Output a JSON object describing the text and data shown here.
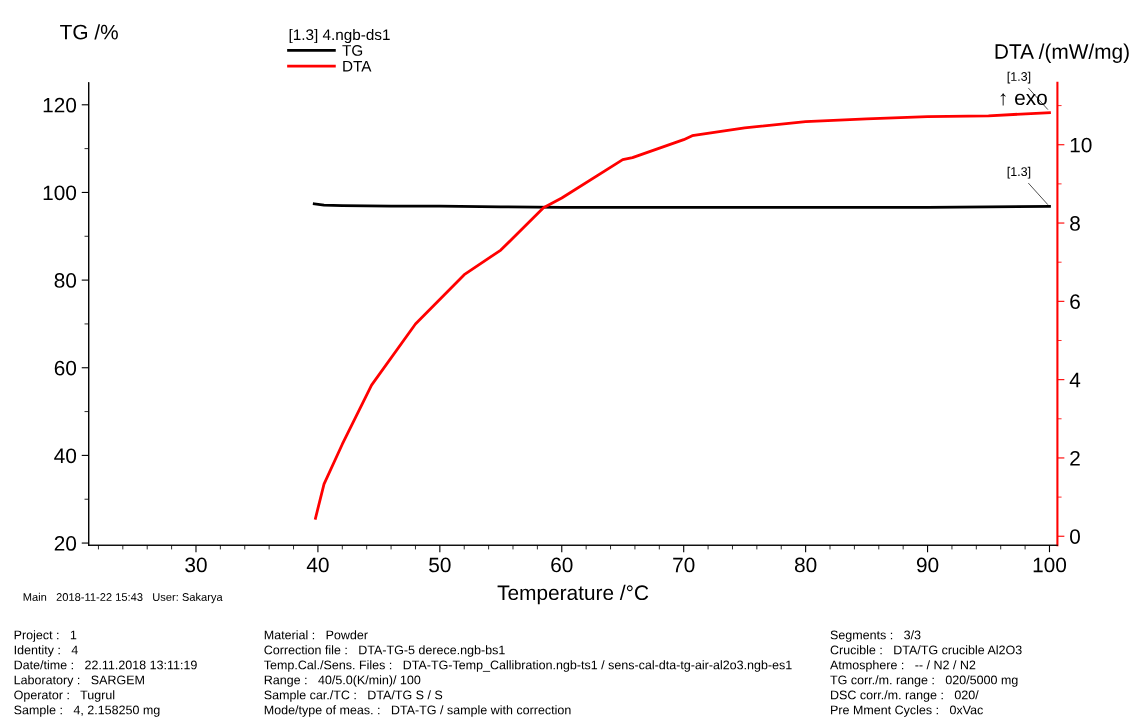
{
  "chart_data": {
    "type": "line",
    "xlabel": "Temperature /°C",
    "ylabel": "TG /%",
    "y2label": "DTA /(mW/mg)",
    "legend_title": "[1.3] 4.ngb-ds1",
    "legend": "top",
    "xlim": [
      21.2,
      100.65
    ],
    "ylim": [
      19.5,
      125
    ],
    "y2lim": [
      -0.23,
      11.58
    ],
    "xticks": [
      {
        "value": 22,
        "label": null
      },
      {
        "value": 24,
        "label": null
      },
      {
        "value": 26,
        "label": null
      },
      {
        "value": 28,
        "label": null
      },
      30,
      {
        "value": 32,
        "label": null
      },
      {
        "value": 34,
        "label": null
      },
      {
        "value": 36,
        "label": null
      },
      {
        "value": 38,
        "label": null
      },
      40,
      {
        "value": 42,
        "label": null
      },
      {
        "value": 44,
        "label": null
      },
      {
        "value": 46,
        "label": null
      },
      {
        "value": 48,
        "label": null
      },
      50,
      {
        "value": 52,
        "label": null
      },
      {
        "value": 54,
        "label": null
      },
      {
        "value": 56,
        "label": null
      },
      {
        "value": 58,
        "label": null
      },
      60,
      {
        "value": 62,
        "label": null
      },
      {
        "value": 64,
        "label": null
      },
      {
        "value": 66,
        "label": null
      },
      {
        "value": 68,
        "label": null
      },
      70,
      {
        "value": 72,
        "label": null
      },
      {
        "value": 74,
        "label": null
      },
      {
        "value": 76,
        "label": null
      },
      {
        "value": 78,
        "label": null
      },
      80,
      {
        "value": 82,
        "label": null
      },
      {
        "value": 84,
        "label": null
      },
      {
        "value": 86,
        "label": null
      },
      {
        "value": 88,
        "label": null
      },
      90,
      {
        "value": 92,
        "label": null
      },
      {
        "value": 94,
        "label": null
      },
      {
        "value": 96,
        "label": null
      },
      {
        "value": 98,
        "label": null
      },
      100
    ],
    "yticks": [
      20,
      {
        "value": 30,
        "label": null
      },
      40,
      {
        "value": 50,
        "label": null
      },
      60,
      {
        "value": 70,
        "label": null
      },
      80,
      {
        "value": 90,
        "label": null
      },
      100,
      {
        "value": 110,
        "label": null
      },
      120
    ],
    "y2ticks": [
      0,
      {
        "value": 1,
        "label": null
      },
      2,
      {
        "value": 3,
        "label": null
      },
      4,
      {
        "value": 5,
        "label": null
      },
      6,
      {
        "value": 7,
        "label": null
      },
      8,
      {
        "value": 9,
        "label": null
      },
      10,
      {
        "value": 11,
        "label": null
      }
    ],
    "series": [
      {
        "name": "TG",
        "color": "#000000",
        "x": [
          39.7,
          40.5,
          42,
          46,
          50,
          55,
          60,
          65,
          70,
          75,
          80,
          85,
          90,
          95,
          100
        ],
        "values": [
          97.4,
          97.1,
          97.0,
          96.9,
          96.9,
          96.7,
          96.6,
          96.6,
          96.6,
          96.6,
          96.6,
          96.6,
          96.6,
          96.7,
          96.8
        ]
      },
      {
        "name": "DTA",
        "color": "#ff0000",
        "axis": "y2",
        "x": [
          39.8,
          40.5,
          42,
          44.4,
          48,
          52,
          55,
          58.5,
          60,
          65,
          65.8,
          70,
          70.7,
          75,
          80,
          85,
          90,
          95,
          100
        ],
        "values": [
          0.46,
          1.33,
          2.35,
          3.86,
          5.42,
          6.68,
          7.31,
          8.39,
          8.64,
          9.62,
          9.67,
          10.13,
          10.23,
          10.43,
          10.59,
          10.66,
          10.72,
          10.74,
          10.82
        ]
      }
    ],
    "annotations": [
      "↑ exo",
      "Main   2018-11-22 15:43   User: Sakarya",
      "Project :   1",
      "Identity :   4",
      "Date/time :   22.11.2018 13:11:19",
      "Laboratory :   SARGEM",
      "Operator :   Tugrul",
      "Sample :   4, 2.158250 mg",
      "Material :   Powder",
      "Correction file :   DTA-TG-5 derece.ngb-bs1",
      "Temp.Cal./Sens. Files :   DTA-TG-Temp_Callibration.ngb-ts1 / sens-cal-dta-tg-air-al2o3.ngb-es1",
      "Range :   40/5.0(K/min)/ 100",
      "Sample car./TC :   DTA/TG S / S",
      "Mode/type of meas. :   DTA-TG / sample with correction",
      "Segments :   3/3",
      "Crucible :   DTA/TG crucible Al2O3",
      "Atmosphere :   -- / N2 / N2",
      "TG corr./m. range :   020/5000 mg",
      "DSC corr./m. range :   020/",
      "Pre Mment Cycles :   0xVac",
      {
        "text": "[1.3]",
        "x": 100,
        "y": 96.8
      },
      {
        "text": "[1.3]",
        "x": 100,
        "y": 118.5
      }
    ]
  }
}
